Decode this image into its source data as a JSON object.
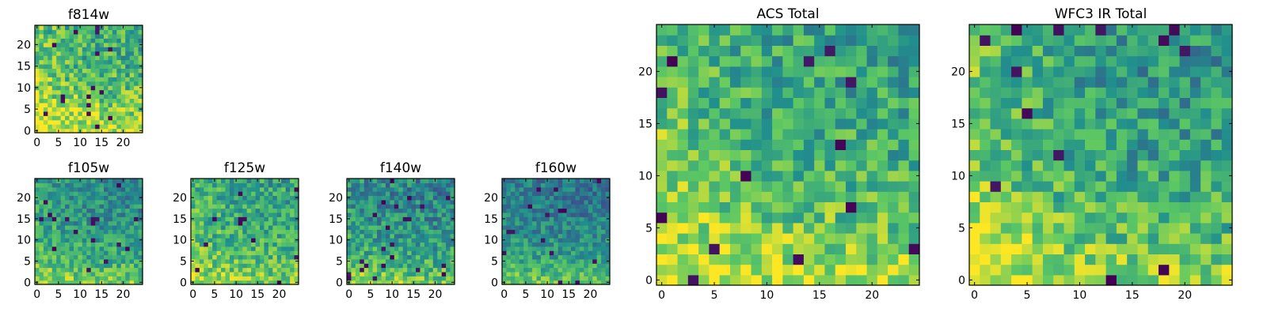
{
  "figure": {
    "description_free": true
  },
  "colormap": {
    "name": "viridis",
    "stops": [
      "#440154",
      "#3b528b",
      "#21908d",
      "#5dc863",
      "#fde725"
    ]
  },
  "chart_data": [
    {
      "id": "f814w",
      "type": "heatmap",
      "title": "f814w",
      "grid_size": 25,
      "xticks": [
        "0",
        "5",
        "10",
        "15",
        "20"
      ],
      "yticks": [
        "0",
        "5",
        "10",
        "15",
        "20"
      ],
      "seed": 11,
      "dark_fraction": 0.03,
      "base_level": 0.62,
      "bottom_boost": 0.3,
      "left_boost": 0.15,
      "noise": 0.22
    },
    {
      "id": "f105w",
      "type": "heatmap",
      "title": "f105w",
      "grid_size": 25,
      "xticks": [
        "0",
        "5",
        "10",
        "15",
        "20"
      ],
      "yticks": [
        "0",
        "5",
        "10",
        "15",
        "20"
      ],
      "seed": 23,
      "dark_fraction": 0.02,
      "base_level": 0.48,
      "bottom_boost": 0.3,
      "left_boost": 0.12,
      "noise": 0.18
    },
    {
      "id": "f125w",
      "type": "heatmap",
      "title": "f125w",
      "grid_size": 25,
      "xticks": [
        "0",
        "5",
        "10",
        "15",
        "20"
      ],
      "yticks": [
        "0",
        "5",
        "10",
        "15",
        "20"
      ],
      "seed": 37,
      "dark_fraction": 0.02,
      "base_level": 0.58,
      "bottom_boost": 0.22,
      "left_boost": 0.1,
      "noise": 0.2
    },
    {
      "id": "f140w",
      "type": "heatmap",
      "title": "f140w",
      "grid_size": 25,
      "xticks": [
        "0",
        "5",
        "10",
        "15",
        "20"
      ],
      "yticks": [
        "0",
        "5",
        "10",
        "15",
        "20"
      ],
      "seed": 51,
      "dark_fraction": 0.03,
      "base_level": 0.45,
      "bottom_boost": 0.32,
      "left_boost": 0.08,
      "noise": 0.2
    },
    {
      "id": "f160w",
      "type": "heatmap",
      "title": "f160w",
      "grid_size": 25,
      "xticks": [
        "0",
        "5",
        "10",
        "15",
        "20"
      ],
      "yticks": [
        "0",
        "5",
        "10",
        "15",
        "20"
      ],
      "seed": 67,
      "dark_fraction": 0.02,
      "base_level": 0.4,
      "bottom_boost": 0.35,
      "left_boost": 0.05,
      "noise": 0.16
    },
    {
      "id": "acs-total",
      "type": "heatmap",
      "title": "ACS Total",
      "grid_size": 25,
      "xticks": [
        "0",
        "5",
        "10",
        "15",
        "20"
      ],
      "yticks": [
        "0",
        "5",
        "10",
        "15",
        "20"
      ],
      "seed": 79,
      "dark_fraction": 0.025,
      "base_level": 0.58,
      "bottom_boost": 0.3,
      "left_boost": 0.15,
      "noise": 0.2
    },
    {
      "id": "wfc3-ir-total",
      "type": "heatmap",
      "title": "WFC3 IR Total",
      "grid_size": 25,
      "xticks": [
        "0",
        "5",
        "10",
        "15",
        "20"
      ],
      "yticks": [
        "0",
        "5",
        "10",
        "15",
        "20"
      ],
      "seed": 97,
      "dark_fraction": 0.025,
      "base_level": 0.52,
      "bottom_boost": 0.3,
      "left_boost": 0.22,
      "noise": 0.2
    }
  ]
}
